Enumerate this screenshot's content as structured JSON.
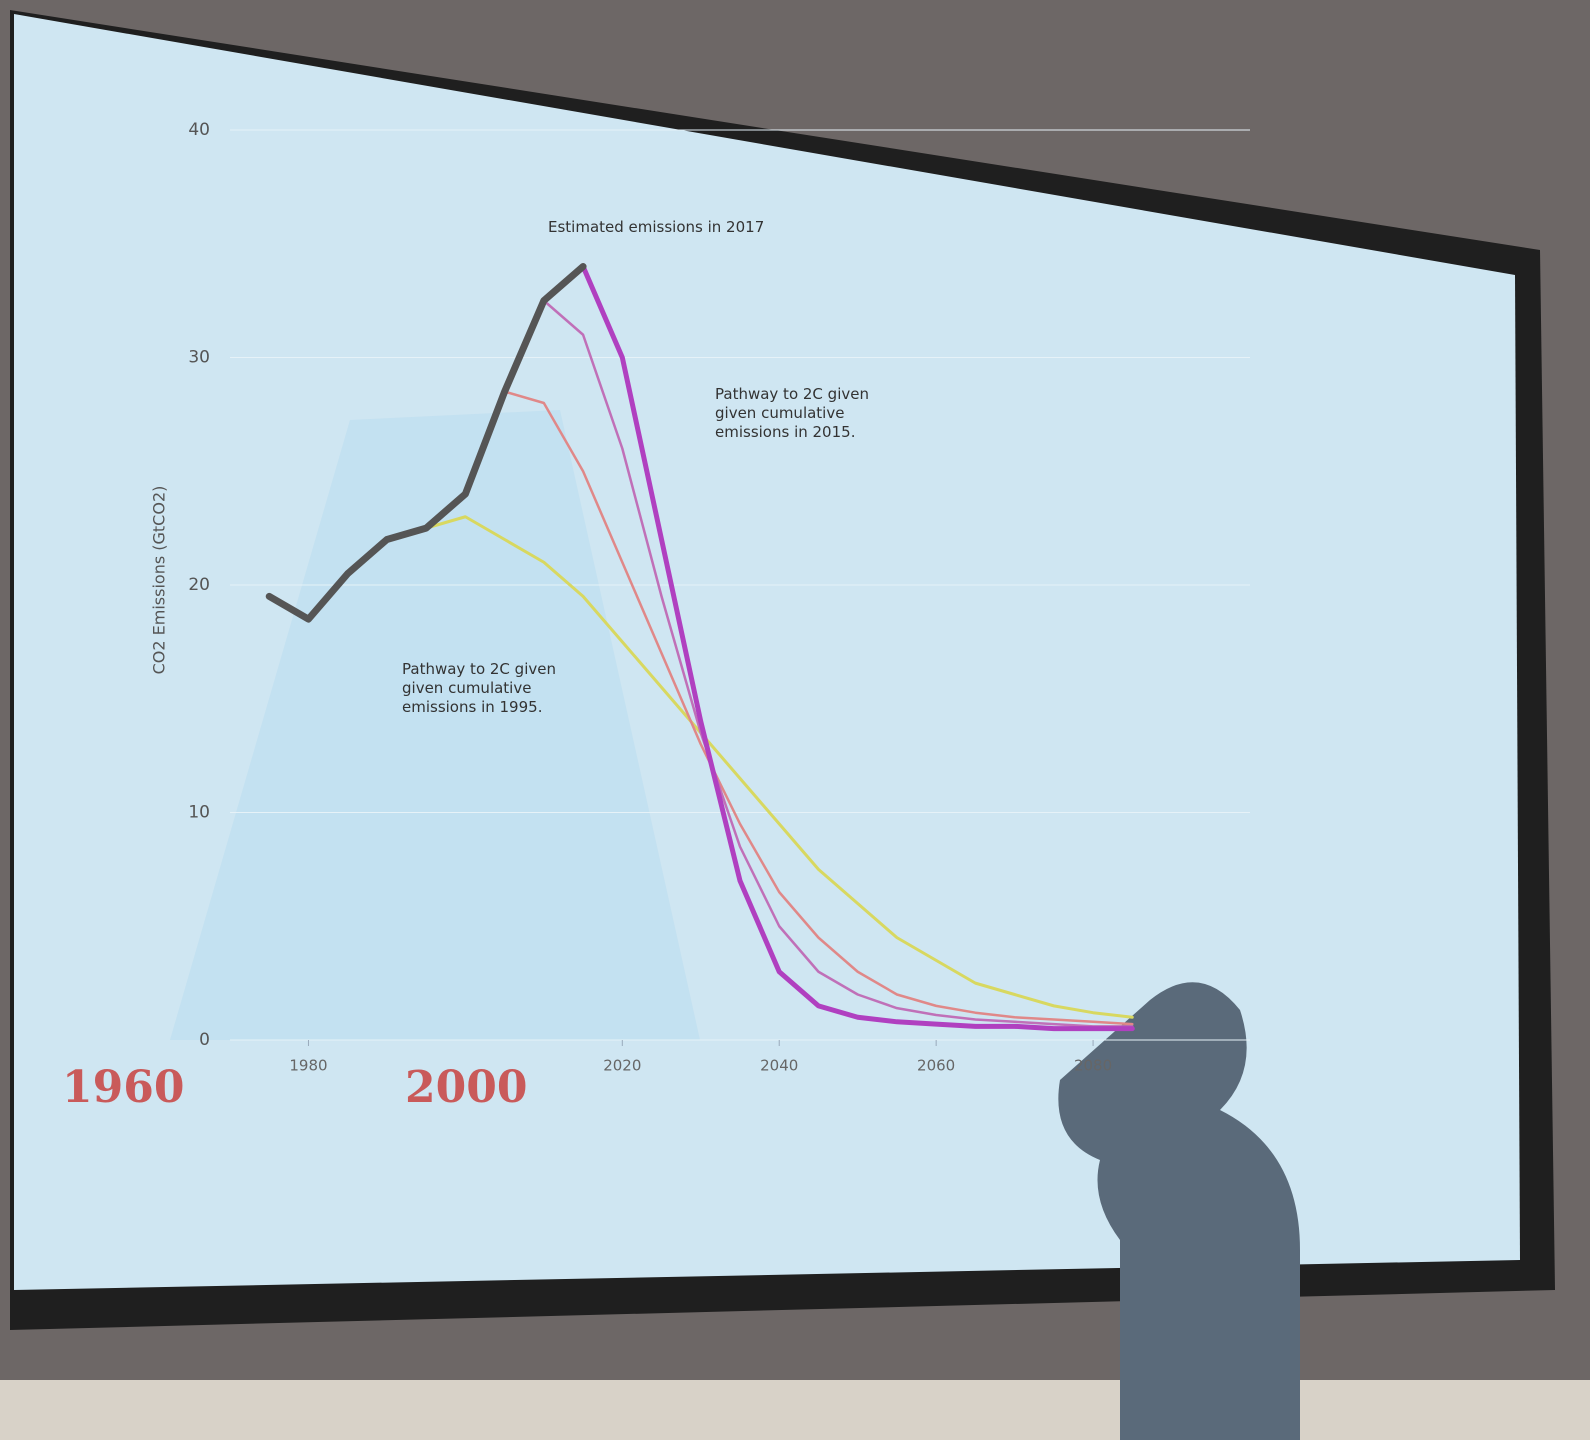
{
  "chart_data": {
    "type": "line",
    "y_label": "CO2 Emissions (GtCO2)",
    "x": [
      1975,
      1980,
      1985,
      1990,
      1995,
      2000,
      2005,
      2010,
      2015,
      2020,
      2025,
      2030,
      2035,
      2040,
      2045,
      2050,
      2055,
      2060,
      2065,
      2070,
      2075,
      2080,
      2085,
      2090,
      2095,
      2100
    ],
    "xlim": [
      1970,
      2100
    ],
    "xticks": [
      1980,
      2020,
      2040,
      2060,
      2080
    ],
    "ylim": [
      0,
      40
    ],
    "yticks": [
      0,
      10,
      20,
      30,
      40
    ],
    "series": [
      {
        "color": "#d8d860",
        "width": 3,
        "values": [
          null,
          null,
          null,
          null,
          22.5,
          23,
          22,
          21,
          19.5,
          17.5,
          15.5,
          13.5,
          11.5,
          9.5,
          7.5,
          6,
          4.5,
          3.5,
          2.5,
          2,
          1.5,
          1.2,
          1,
          null,
          null,
          null
        ]
      },
      {
        "color": "#e08888",
        "width": 2.5,
        "values": [
          null,
          null,
          null,
          null,
          null,
          null,
          28.5,
          28,
          25,
          21,
          17,
          13,
          9.5,
          6.5,
          4.5,
          3,
          2,
          1.5,
          1.2,
          1,
          0.9,
          0.8,
          0.7,
          null,
          null,
          null
        ]
      },
      {
        "color": "#c070b8",
        "width": 2.5,
        "values": [
          null,
          null,
          null,
          null,
          null,
          null,
          null,
          32.5,
          31,
          26,
          19.5,
          13.5,
          8.5,
          5,
          3,
          2,
          1.4,
          1.1,
          0.9,
          0.8,
          0.7,
          0.6,
          0.6,
          null,
          null,
          null
        ]
      },
      {
        "color": "#b040c0",
        "width": 5,
        "values": [
          null,
          null,
          null,
          null,
          null,
          null,
          null,
          null,
          34,
          30,
          22,
          14,
          7,
          3,
          1.5,
          1,
          0.8,
          0.7,
          0.6,
          0.6,
          0.5,
          0.5,
          0.5,
          null,
          null,
          null
        ]
      },
      {
        "color": "#555555",
        "width": 7,
        "values": [
          19.5,
          18.5,
          20.5,
          22,
          22.5,
          24,
          28.5,
          32.5,
          34,
          null,
          null,
          null,
          null,
          null,
          null,
          null,
          null,
          null,
          null,
          null,
          null,
          null,
          null,
          null,
          null,
          null
        ]
      }
    ],
    "annotations": [
      "Estimated emissions in 2017",
      "Pathway to 2C given given cumulative emissions in 2015.",
      "Pathway to 2C given given cumulative emissions in 1995."
    ],
    "overlay_labels": [
      "1960",
      "2000"
    ]
  }
}
